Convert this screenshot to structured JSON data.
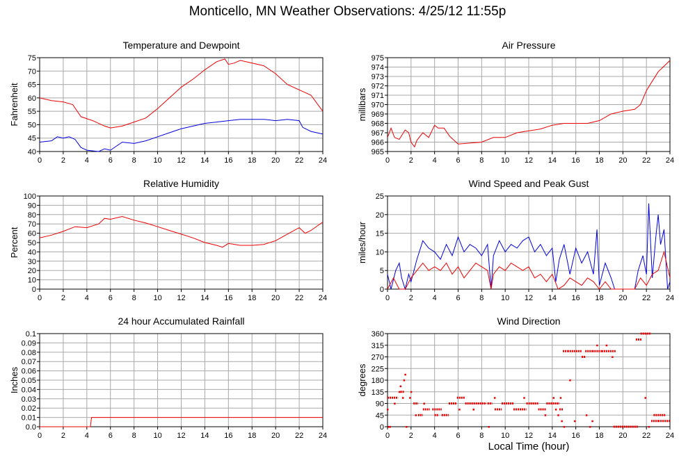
{
  "title": "Monticello, MN Weather Observations: 4/25/12 11:55p",
  "xlabel": "Local Time (hour)",
  "colors": {
    "red": "#ee0000",
    "blue": "#0000dd",
    "grid": "#a8a8a8",
    "axis": "#000000"
  },
  "chart_data": [
    {
      "key": "temp",
      "type": "line",
      "title": "Temperature and Dewpoint",
      "xlabel": "",
      "ylabel": "Fahrenheit",
      "xlim": [
        0,
        24
      ],
      "ylim": [
        40,
        75
      ],
      "xticks": [
        0,
        2,
        4,
        6,
        8,
        10,
        12,
        14,
        16,
        18,
        20,
        22,
        24
      ],
      "yticks": [
        40,
        45,
        50,
        55,
        60,
        65,
        70,
        75
      ],
      "series": [
        {
          "color": "#ee0000",
          "x": [
            0,
            1,
            2,
            2.8,
            3.5,
            4.5,
            5.5,
            6,
            7,
            8,
            9,
            10,
            11,
            12,
            13,
            14,
            15,
            15.7,
            16,
            16.5,
            17,
            18,
            19,
            20,
            21,
            22,
            23,
            23.5,
            24
          ],
          "y": [
            60,
            59,
            58.5,
            57.5,
            53,
            51.5,
            49.5,
            48.8,
            49.5,
            51,
            52.5,
            56,
            60,
            64,
            67,
            70.5,
            73.5,
            74.5,
            72.5,
            73,
            74,
            73,
            72,
            69,
            65,
            63,
            61,
            58,
            55
          ]
        },
        {
          "color": "#0000dd",
          "x": [
            0,
            1,
            1.5,
            2,
            2.5,
            3,
            3.5,
            4,
            5,
            5.5,
            6,
            7,
            8,
            9,
            10,
            11,
            12,
            13,
            14,
            15,
            16,
            17,
            18,
            19,
            20,
            21,
            22,
            22.3,
            23,
            24
          ],
          "y": [
            43.5,
            44,
            45.5,
            45,
            45.5,
            44.5,
            41.5,
            40.5,
            40,
            41,
            40.5,
            43.5,
            43,
            44,
            45.5,
            47,
            48.5,
            49.5,
            50.5,
            51,
            51.5,
            52,
            52,
            52,
            51.5,
            52,
            51.5,
            49,
            47.5,
            46.5
          ]
        }
      ]
    },
    {
      "key": "pressure",
      "type": "line",
      "title": "Air Pressure",
      "xlabel": "",
      "ylabel": "millibars",
      "xlim": [
        0,
        24
      ],
      "ylim": [
        965,
        975
      ],
      "xticks": [
        0,
        2,
        4,
        6,
        8,
        10,
        12,
        14,
        16,
        18,
        20,
        22,
        24
      ],
      "yticks": [
        965,
        966,
        967,
        968,
        969,
        970,
        971,
        972,
        973,
        974,
        975
      ],
      "series": [
        {
          "color": "#ee0000",
          "x": [
            0,
            0.3,
            0.6,
            1,
            1.5,
            1.8,
            2,
            2.3,
            2.5,
            3,
            3.5,
            4,
            4.3,
            4.8,
            5.3,
            6,
            7,
            8,
            9,
            10,
            11,
            12,
            13,
            14,
            15,
            16,
            17,
            18,
            19,
            20,
            21,
            21.5,
            22,
            22.5,
            23,
            24
          ],
          "y": [
            966.5,
            967.5,
            966.5,
            966.3,
            967.3,
            967,
            966,
            965.5,
            966.2,
            967,
            966.5,
            967.8,
            967.5,
            967.5,
            966.6,
            965.8,
            965.9,
            966,
            966.5,
            966.5,
            967,
            967.2,
            967.4,
            967.8,
            968,
            968,
            968,
            968.3,
            969,
            969.3,
            969.5,
            970,
            971.5,
            972.5,
            973.5,
            974.7
          ]
        }
      ]
    },
    {
      "key": "humidity",
      "type": "line",
      "title": "Relative Humidity",
      "xlabel": "",
      "ylabel": "Percent",
      "xlim": [
        0,
        24
      ],
      "ylim": [
        0,
        100
      ],
      "xticks": [
        0,
        2,
        4,
        6,
        8,
        10,
        12,
        14,
        16,
        18,
        20,
        22,
        24
      ],
      "yticks": [
        0,
        10,
        20,
        30,
        40,
        50,
        60,
        70,
        80,
        90,
        100
      ],
      "series": [
        {
          "color": "#ee0000",
          "x": [
            0,
            1,
            2,
            3,
            4,
            5,
            5.5,
            6,
            7,
            8,
            9,
            10,
            11,
            12,
            13,
            14,
            15,
            15.5,
            16,
            17,
            18,
            19,
            20,
            21,
            22,
            22.5,
            23,
            24
          ],
          "y": [
            55,
            58,
            62,
            67,
            66,
            70,
            76,
            75,
            78,
            74,
            71,
            67,
            63,
            59,
            55,
            50,
            47,
            45,
            49,
            47,
            47,
            48,
            52,
            59,
            66,
            60,
            63,
            72
          ]
        }
      ]
    },
    {
      "key": "wind",
      "type": "line",
      "title": "Wind Speed and Peak Gust",
      "xlabel": "",
      "ylabel": "miles/hour",
      "xlim": [
        0,
        24
      ],
      "ylim": [
        0,
        25
      ],
      "xticks": [
        0,
        2,
        4,
        6,
        8,
        10,
        12,
        14,
        16,
        18,
        20,
        22,
        24
      ],
      "yticks": [
        0,
        5,
        10,
        15,
        20,
        25
      ],
      "series": [
        {
          "color": "#0000dd",
          "x": [
            0,
            0.3,
            0.7,
            1,
            1.2,
            1.5,
            1.8,
            2,
            2.5,
            3,
            3.5,
            4,
            4.5,
            5,
            5.5,
            6,
            6.5,
            7,
            7.5,
            8,
            8.5,
            8.8,
            9,
            9.5,
            10,
            10.5,
            11,
            11.5,
            12,
            12.5,
            13,
            13.5,
            14,
            14.3,
            14.6,
            15,
            15.5,
            16,
            16.5,
            17,
            17.5,
            17.8,
            18,
            18.5,
            19,
            19.3,
            20,
            21,
            21.3,
            21.7,
            22,
            22.2,
            22.5,
            22.8,
            23,
            23.2,
            23.5,
            23.8,
            24
          ],
          "y": [
            4,
            0,
            5,
            7,
            3,
            0,
            4,
            2,
            8,
            13,
            11,
            10,
            8,
            12,
            9,
            14,
            10,
            12,
            11,
            9,
            12,
            0,
            9,
            13,
            10,
            12,
            11,
            13,
            14,
            10,
            12,
            9,
            11,
            2,
            8,
            12,
            4,
            11,
            7,
            10,
            4,
            16,
            1,
            7,
            3,
            0,
            0,
            0,
            5,
            9,
            4,
            23,
            3,
            14,
            20,
            12,
            16,
            0,
            2
          ]
        },
        {
          "color": "#ee0000",
          "x": [
            0,
            0.5,
            1,
            1.5,
            2,
            2.5,
            3,
            3.5,
            4,
            4.5,
            5,
            5.5,
            6,
            6.5,
            7,
            7.5,
            8,
            8.5,
            8.8,
            9,
            9.5,
            10,
            10.5,
            11,
            11.5,
            12,
            12.5,
            13,
            13.5,
            14,
            14.5,
            15,
            15.5,
            16,
            16.5,
            17,
            17.5,
            18,
            18.5,
            19,
            20,
            21,
            21.5,
            22,
            22.5,
            23,
            23.5,
            24
          ],
          "y": [
            0,
            3,
            0,
            0,
            3,
            5,
            7,
            5,
            6,
            5,
            7,
            4,
            6,
            3,
            5,
            7,
            6,
            5,
            0,
            4,
            6,
            5,
            7,
            6,
            5,
            6,
            3,
            4,
            2,
            4,
            0,
            1,
            3,
            2,
            1,
            3,
            2,
            0,
            2,
            0,
            0,
            0,
            3,
            1,
            4,
            5,
            10,
            3
          ]
        }
      ]
    },
    {
      "key": "rain",
      "type": "line",
      "title": "24 hour Accumulated Rainfall",
      "xlabel": "",
      "ylabel": "Inches",
      "xlim": [
        0,
        24
      ],
      "ylim": [
        0,
        0.1
      ],
      "xticks": [
        0,
        2,
        4,
        6,
        8,
        10,
        12,
        14,
        16,
        18,
        20,
        22,
        24
      ],
      "yticks": [
        0,
        0.01,
        0.02,
        0.03,
        0.04,
        0.05,
        0.06,
        0.07,
        0.08,
        0.09,
        0.1
      ],
      "yticklabels": [
        "0.0",
        "0.01",
        "0.02",
        "0.03",
        "0.04",
        "0.05",
        "0.06",
        "0.07",
        "0.08",
        "0.09",
        "0.1"
      ],
      "series": [
        {
          "color": "#ee0000",
          "x": [
            0,
            4.3,
            4.4,
            24
          ],
          "y": [
            0,
            0,
            0.01,
            0.01
          ]
        }
      ]
    },
    {
      "key": "winddir",
      "type": "scatter",
      "title": "Wind Direction",
      "xlabel": "Local Time (hour)",
      "ylabel": "degrees",
      "xlim": [
        0,
        24
      ],
      "ylim": [
        0,
        360
      ],
      "xticks": [
        0,
        2,
        4,
        6,
        8,
        10,
        12,
        14,
        16,
        18,
        20,
        22,
        24
      ],
      "yticks": [
        0,
        45,
        90,
        135,
        180,
        225,
        270,
        315,
        360
      ],
      "series": [
        {
          "color": "#ee0000",
          "segments": [
            [
              0.0,
              0.9,
              112
            ],
            [
              1.1,
              1.4,
              135
            ],
            [
              2.2,
              2.6,
              90
            ],
            [
              2.6,
              3.0,
              45
            ],
            [
              3.0,
              3.6,
              67
            ],
            [
              3.8,
              4.6,
              67
            ],
            [
              4.0,
              4.3,
              45
            ],
            [
              4.6,
              5.2,
              45
            ],
            [
              5.2,
              5.9,
              90
            ],
            [
              5.9,
              6.6,
              112
            ],
            [
              6.6,
              8.4,
              90
            ],
            [
              8.5,
              8.9,
              90
            ],
            [
              9.1,
              9.7,
              67
            ],
            [
              9.7,
              10.7,
              90
            ],
            [
              10.7,
              11.4,
              67
            ],
            [
              11.4,
              11.8,
              67
            ],
            [
              11.8,
              12.8,
              90
            ],
            [
              12.8,
              13.5,
              67
            ],
            [
              13.5,
              14.6,
              90
            ],
            [
              14.6,
              14.9,
              67
            ],
            [
              14.9,
              15.3,
              292
            ],
            [
              15.3,
              16.5,
              292
            ],
            [
              16.5,
              16.8,
              270
            ],
            [
              16.8,
              17.4,
              292
            ],
            [
              17.4,
              18.2,
              292
            ],
            [
              18.2,
              19.4,
              292
            ],
            [
              19.2,
              21.3,
              0
            ],
            [
              21.1,
              21.6,
              337
            ],
            [
              21.5,
              22.4,
              360
            ],
            [
              22.4,
              23.0,
              22
            ],
            [
              22.6,
              23.6,
              45
            ],
            [
              23.0,
              24.0,
              22
            ]
          ],
          "points": [
            [
              0.0,
              67
            ],
            [
              0.1,
              0
            ],
            [
              0.2,
              0
            ],
            [
              0.6,
              90
            ],
            [
              1.0,
              135
            ],
            [
              1.1,
              157
            ],
            [
              1.3,
              112
            ],
            [
              1.4,
              180
            ],
            [
              1.5,
              202
            ],
            [
              1.6,
              0
            ],
            [
              1.9,
              112
            ],
            [
              2.0,
              135
            ],
            [
              2.4,
              45
            ],
            [
              3.1,
              90
            ],
            [
              6.1,
              67
            ],
            [
              7.3,
              67
            ],
            [
              8.6,
              0
            ],
            [
              9.1,
              112
            ],
            [
              11.6,
              112
            ],
            [
              13.4,
              45
            ],
            [
              14.1,
              112
            ],
            [
              14.3,
              67
            ],
            [
              14.5,
              45
            ],
            [
              14.7,
              112
            ],
            [
              14.8,
              22
            ],
            [
              15.0,
              0
            ],
            [
              15.5,
              180
            ],
            [
              15.9,
              22
            ],
            [
              16.9,
              45
            ],
            [
              17.2,
              0
            ],
            [
              17.4,
              22
            ],
            [
              17.8,
              315
            ],
            [
              18.6,
              315
            ],
            [
              19.1,
              270
            ],
            [
              21.9,
              112
            ],
            [
              22.2,
              0
            ]
          ]
        }
      ]
    }
  ]
}
